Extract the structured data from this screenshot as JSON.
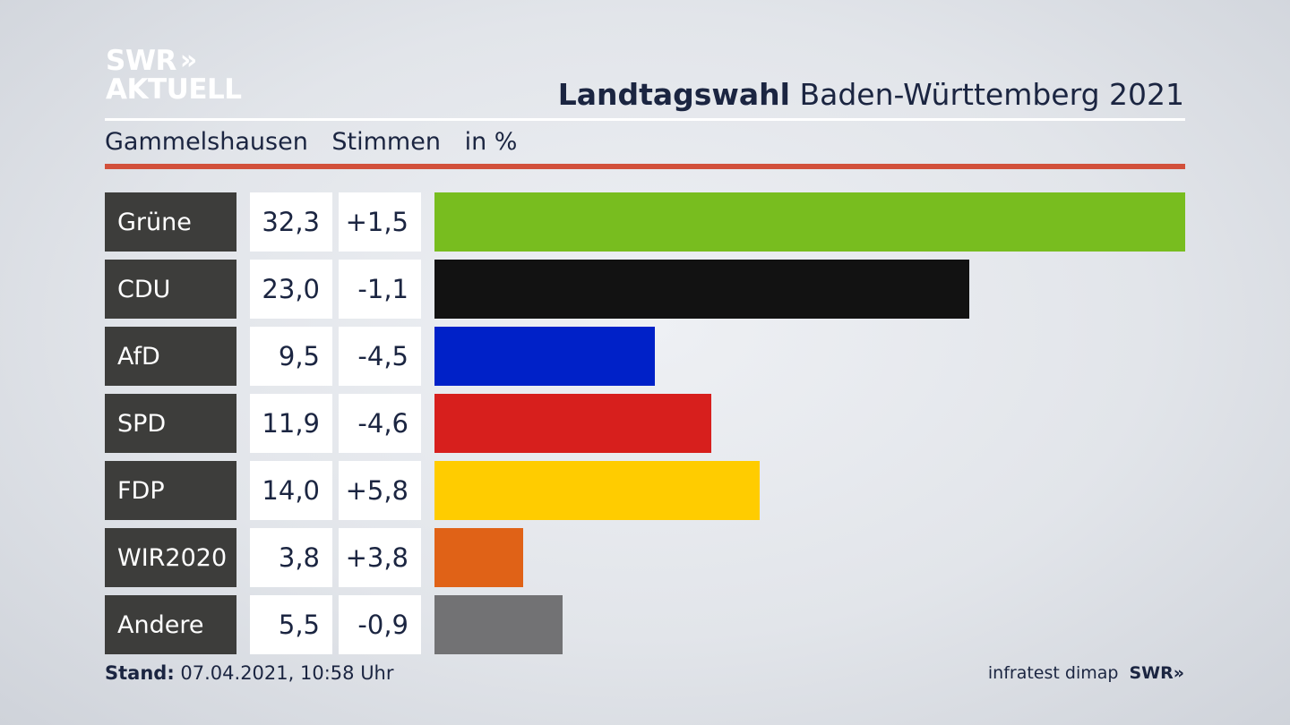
{
  "logo": {
    "line1": "SWR",
    "chevrons": "»",
    "line2": "AKTUELL"
  },
  "header": {
    "title_bold": "Landtagswahl",
    "title_rest": "Baden-Württemberg 2021",
    "subtitle": [
      "Gammelshausen",
      "Stimmen",
      "in %"
    ]
  },
  "footer": {
    "stand_label": "Stand:",
    "stand_value": "07.04.2021, 10:58 Uhr",
    "source": "infratest dimap",
    "brand": "SWR",
    "brand_chevrons": "»"
  },
  "chart_data": {
    "type": "bar",
    "orientation": "horizontal",
    "categories": [
      "Grüne",
      "CDU",
      "AfD",
      "SPD",
      "FDP",
      "WIR2020",
      "Andere"
    ],
    "values": [
      32.3,
      23.0,
      9.5,
      11.9,
      14.0,
      3.8,
      5.5
    ],
    "value_labels": [
      "32,3",
      "23,0",
      "9,5",
      "11,9",
      "14,0",
      "3,8",
      "5,5"
    ],
    "diff_labels": [
      "+1,5",
      "-1,1",
      "-4,5",
      "-4,6",
      "+5,8",
      "+3,8",
      "-0,9"
    ],
    "colors": [
      "#78bd1f",
      "#121212",
      "#0021c8",
      "#d71f1d",
      "#ffcc00",
      "#e06217",
      "#727274"
    ],
    "xlim": [
      0,
      32.3
    ]
  }
}
